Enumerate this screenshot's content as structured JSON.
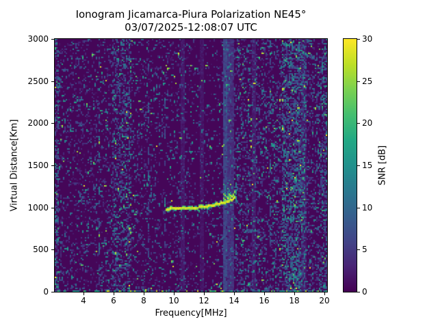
{
  "title": "Ionogram Jicamarca-Piura Polarization NE45°",
  "subtitle": "03/07/2025-12:08:07 UTC",
  "chart_data": {
    "type": "heatmap",
    "title": "Ionogram Jicamarca-Piura Polarization NE45°",
    "subtitle": "03/07/2025-12:08:07 UTC",
    "xlabel": "Frequency[MHz]",
    "ylabel": "Virtual Distance[Km]",
    "xlim": [
      2.1,
      20.2
    ],
    "ylim": [
      0,
      3000
    ],
    "xticks": [
      4,
      6,
      8,
      10,
      12,
      14,
      16,
      18,
      20
    ],
    "yticks": [
      0,
      500,
      1000,
      1500,
      2000,
      2500,
      3000
    ],
    "grid": false,
    "colorbar": {
      "label": "SNR [dB]",
      "min": 0,
      "max": 30,
      "ticks": [
        0,
        5,
        10,
        15,
        20,
        25,
        30
      ],
      "colormap": "viridis",
      "position": "right"
    },
    "seed": 7,
    "viridis_stops": [
      [
        0,
        68,
        1,
        84
      ],
      [
        0.1,
        72,
        36,
        117
      ],
      [
        0.2,
        65,
        68,
        135
      ],
      [
        0.3,
        53,
        95,
        141
      ],
      [
        0.4,
        42,
        120,
        142
      ],
      [
        0.5,
        33,
        145,
        140
      ],
      [
        0.6,
        34,
        168,
        132
      ],
      [
        0.7,
        68,
        190,
        112
      ],
      [
        0.8,
        122,
        209,
        81
      ],
      [
        0.9,
        189,
        223,
        38
      ],
      [
        1,
        253,
        231,
        37
      ]
    ],
    "background": {
      "base_snr": 0.4,
      "speckle_density": 0.16
    },
    "noise_bands": [
      {
        "range": [
          2.1,
          2.35
        ],
        "mult": 2.6,
        "teal": 1.0
      },
      {
        "range": [
          5.9,
          7.15
        ],
        "mult": 2.2,
        "teal": 0.5
      },
      {
        "range": [
          8.6,
          10.3
        ],
        "mult": 0.7,
        "teal": 0.0
      },
      {
        "range": [
          10.8,
          13.2
        ],
        "mult": 0.6,
        "teal": 0.0
      },
      {
        "range": [
          14.0,
          20.2
        ],
        "mult": 1.5,
        "teal": 0.3
      },
      {
        "range": [
          17.2,
          18.7
        ],
        "mult": 2.1,
        "teal": 1.0
      },
      {
        "range": [
          19.85,
          20.2
        ],
        "mult": 1.9,
        "teal": 0.6
      }
    ],
    "rfi_stripes": [
      {
        "range": [
          13.33,
          13.6
        ],
        "snr": 6.5,
        "jitter": 3.0
      },
      {
        "range": [
          13.6,
          13.84
        ],
        "snr": 4.2,
        "jitter": 2.5
      }
    ],
    "faint_stripes": [
      {
        "range": [
          10.5,
          10.62
        ],
        "snr": 1.9,
        "jitter": 1.5
      },
      {
        "range": [
          11.8,
          11.9
        ],
        "snr": 1.7,
        "jitter": 1.5
      },
      {
        "range": [
          15.2,
          15.34
        ],
        "snr": 2.3,
        "jitter": 1.8
      },
      {
        "range": [
          18.56,
          18.66
        ],
        "snr": 1.9,
        "jitter": 1.5
      }
    ],
    "artifact_lines": [
      {
        "f": 5.08
      },
      {
        "f": 8.35
      },
      {
        "f": 9.4
      },
      {
        "f": 16.4
      }
    ],
    "ground_clutter": {
      "km_max": 16,
      "density": 0.5,
      "snr_range": [
        6,
        30
      ]
    },
    "echo_trace": {
      "points_mhz_km": [
        [
          9.45,
          985
        ],
        [
          9.8,
          990
        ],
        [
          10.4,
          997
        ],
        [
          11.0,
          1000
        ],
        [
          11.6,
          1005
        ],
        [
          12.1,
          1015
        ],
        [
          12.6,
          1032
        ],
        [
          13.0,
          1050
        ],
        [
          13.35,
          1063
        ],
        [
          13.6,
          1075
        ],
        [
          13.8,
          1092
        ],
        [
          13.95,
          1112
        ],
        [
          14.08,
          1135
        ]
      ],
      "core_snr": 30,
      "lead_in_mhz": [
        9.25,
        9.55
      ]
    },
    "spread_echo": {
      "freq_range": [
        13.3,
        14.12
      ],
      "km_range": [
        1080,
        1290
      ],
      "density": 0.22,
      "snr_range": [
        9,
        22
      ]
    }
  }
}
